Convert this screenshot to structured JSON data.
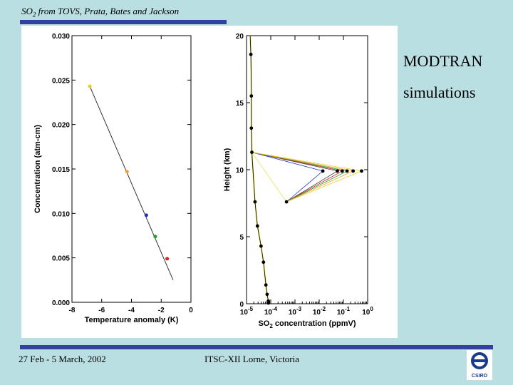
{
  "slide": {
    "title_main": "SO",
    "title_sub": "2",
    "title_rest": " from TOVS, Prata, Bates and Jackson",
    "side_label_1": "MODTRAN",
    "side_label_2": "simulations",
    "footer_left": "27 Feb - 5 March, 2002",
    "footer_center": "ITSC-XII Lorne, Victoria",
    "logo_text": "CSIRO",
    "colors": {
      "background": "#b9dfe3",
      "bars": "#3340a0"
    }
  },
  "chart_data": [
    {
      "type": "scatter",
      "xlabel": "Temperature anomaly (K)",
      "ylabel": "Concentration (atm-cm)",
      "xlim": [
        -8,
        0
      ],
      "ylim": [
        0.0,
        0.03
      ],
      "xticks": [
        "-8",
        "-6",
        "-4",
        "-2",
        "0"
      ],
      "xtick_values": [
        -8,
        -6,
        -4,
        -2,
        0
      ],
      "yticks": [
        "0.000",
        "0.005",
        "0.010",
        "0.015",
        "0.020",
        "0.025",
        "0.030"
      ],
      "ytick_values": [
        0.0,
        0.005,
        0.01,
        0.015,
        0.02,
        0.025,
        0.03
      ],
      "fit_line": {
        "x": [
          -6.8,
          -1.2
        ],
        "y": [
          0.0243,
          0.0025
        ]
      },
      "points": [
        {
          "x": -6.8,
          "y": 0.0243,
          "color": "#e0d020"
        },
        {
          "x": -4.3,
          "y": 0.0147,
          "color": "#f0a030"
        },
        {
          "x": -3.0,
          "y": 0.0098,
          "color": "#2030c0"
        },
        {
          "x": -2.4,
          "y": 0.0074,
          "color": "#20a020"
        },
        {
          "x": -1.6,
          "y": 0.0049,
          "color": "#e02020"
        }
      ]
    },
    {
      "type": "line",
      "xlabel": "concentration (ppmV)",
      "xlabel_prefix": "SO",
      "xlabel_sub": "2",
      "ylabel": "Height (km)",
      "xscale": "log",
      "xlim_exp": [
        -5,
        0
      ],
      "ylim": [
        0,
        20
      ],
      "xtick_bases": [
        "10",
        "10",
        "10",
        "10",
        "10",
        "10"
      ],
      "xtick_exps": [
        "-5",
        "-4",
        "-3",
        "-2",
        "-1",
        "0"
      ],
      "xtick_values_exp": [
        -5,
        -4,
        -3,
        -2,
        -1,
        0
      ],
      "yticks": [
        "0",
        "5",
        "10",
        "15",
        "20"
      ],
      "ytick_values": [
        0,
        5,
        10,
        15,
        20
      ],
      "profile": {
        "log10x": [
          -4.85,
          -4.82,
          -4.8,
          -4.8,
          -4.78,
          -4.65,
          -4.55,
          -4.4,
          -4.3,
          -4.2,
          -4.15,
          -4.1,
          -4.1
        ],
        "y": [
          20,
          18.6,
          15.5,
          13.1,
          11.3,
          7.6,
          5.8,
          4.3,
          3.1,
          1.4,
          0.7,
          0.2,
          0.05
        ]
      },
      "plume_top": {
        "log10x": -4.78,
        "y": 11.3
      },
      "plume_bottom": {
        "log10x": -3.35,
        "y": 7.6
      },
      "plume_peaks": {
        "log10x": [
          -1.85,
          -1.25,
          -1.05,
          -0.85,
          -0.6,
          -0.25
        ],
        "y": [
          9.9,
          9.9,
          9.9,
          9.9,
          9.9,
          9.9
        ],
        "colors": [
          "#2030c0",
          "#404040",
          "#d02020",
          "#20a020",
          "#f0a030",
          "#e0d020"
        ]
      }
    }
  ]
}
